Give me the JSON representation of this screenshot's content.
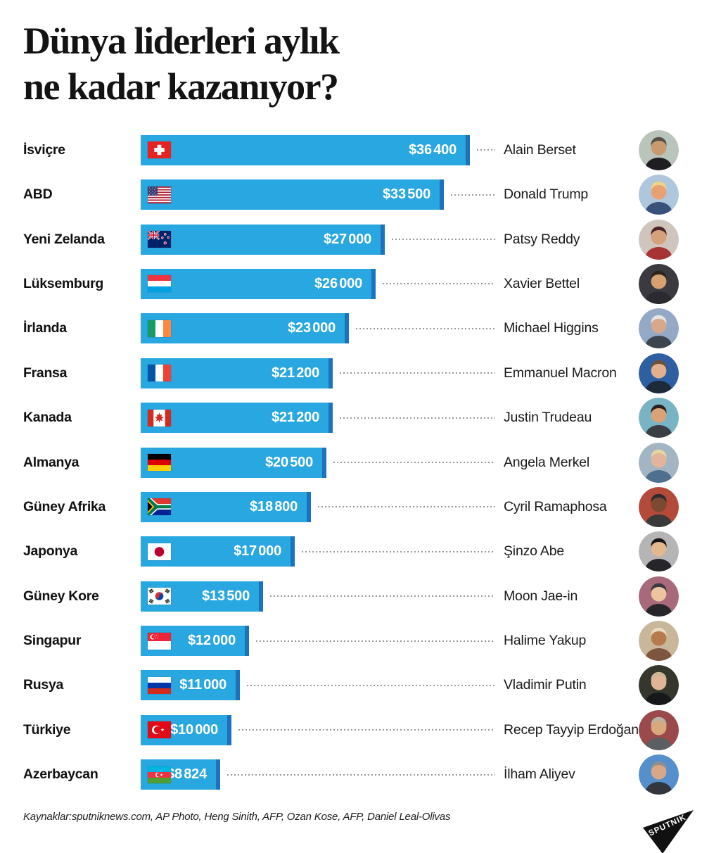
{
  "title": {
    "line1": "Dünya liderleri aylık",
    "line2": "ne kadar kazanıyor?"
  },
  "colors": {
    "bar": "#29a7e1",
    "bar_edge": "#1d72bd",
    "dots": "#999999",
    "background": "#ffffff",
    "text": "#131313"
  },
  "chart_data": {
    "type": "bar",
    "title": "Dünya liderleri aylık ne kadar kazanıyor?",
    "orientation": "horizontal",
    "unit": "USD per month",
    "categories": [
      "İsviçre",
      "ABD",
      "Yeni Zelanda",
      "Lüksemburg",
      "İrlanda",
      "Fransa",
      "Kanada",
      "Almanya",
      "Güney Afrika",
      "Japonya",
      "Güney Kore",
      "Singapur",
      "Rusya",
      "Türkiye",
      "Azerbaycan"
    ],
    "values": [
      36400,
      33500,
      27000,
      26000,
      23000,
      21200,
      21200,
      20500,
      18800,
      17000,
      13500,
      12000,
      11000,
      10000,
      8824
    ],
    "value_labels": [
      "$36 400",
      "$33 500",
      "$27 000",
      "$26 000",
      "$23 000",
      "$21 200",
      "$21 200",
      "$20 500",
      "$18 800",
      "$17 000",
      "$13 500",
      "$12 000",
      "$11 000",
      "$10 000",
      "$8 824"
    ],
    "leaders": [
      "Alain Berset",
      "Donald Trump",
      "Patsy Reddy",
      "Xavier Bettel",
      "Michael Higgins",
      "Emmanuel Macron",
      "Justin Trudeau",
      "Angela Merkel",
      "Cyril Ramaphosa",
      "Şinzo Abe",
      "Moon Jae-in",
      "Halime Yakup",
      "Vladimir Putin",
      "Recep Tayyip Erdoğan",
      "İlham Aliyev"
    ],
    "xlim": [
      0,
      36400
    ],
    "grid": false,
    "legend": false
  },
  "rows": [
    {
      "country": "İsviçre",
      "flag": "switzerland-flag-icon",
      "value": "$36 400",
      "amount": 36400,
      "leader": "Alain Berset",
      "photo": {
        "bg": "#b9c4bb",
        "skin": "#c79b6d",
        "hair": "#55504a",
        "suit": "#1e1e22"
      }
    },
    {
      "country": "ABD",
      "flag": "usa-flag-icon",
      "value": "$33 500",
      "amount": 33500,
      "leader": "Donald Trump",
      "photo": {
        "bg": "#aec7dd",
        "skin": "#e8a173",
        "hair": "#eed389",
        "suit": "#37517a"
      }
    },
    {
      "country": "Yeni Zelanda",
      "flag": "new-zealand-flag-icon",
      "value": "$27 000",
      "amount": 27000,
      "leader": "Patsy Reddy",
      "photo": {
        "bg": "#cfc5bc",
        "skin": "#d5a07c",
        "hair": "#4a2428",
        "suit": "#a63434"
      }
    },
    {
      "country": "Lüksemburg",
      "flag": "luxembourg-flag-icon",
      "value": "$26 000",
      "amount": 26000,
      "leader": "Xavier Bettel",
      "photo": {
        "bg": "#3a3a40",
        "skin": "#d7a273",
        "hair": "#2e241e",
        "suit": "#2a2a30"
      }
    },
    {
      "country": "İrlanda",
      "flag": "ireland-flag-icon",
      "value": "$23 000",
      "amount": 23000,
      "leader": "Michael Higgins",
      "photo": {
        "bg": "#93a9c6",
        "skin": "#d6a88c",
        "hair": "#e4e4e2",
        "suit": "#3c4450"
      }
    },
    {
      "country": "Fransa",
      "flag": "france-flag-icon",
      "value": "$21 200",
      "amount": 21200,
      "leader": "Emmanuel Macron",
      "photo": {
        "bg": "#2f5fa3",
        "skin": "#e3b08d",
        "hair": "#6b5238",
        "suit": "#1c2a3a"
      }
    },
    {
      "country": "Kanada",
      "flag": "canada-flag-icon",
      "value": "$21 200",
      "amount": 21200,
      "leader": "Justin Trudeau",
      "photo": {
        "bg": "#79b4c4",
        "skin": "#d9a377",
        "hair": "#2a211a",
        "suit": "#3a3f46"
      }
    },
    {
      "country": "Almanya",
      "flag": "germany-flag-icon",
      "value": "$20 500",
      "amount": 20500,
      "leader": "Angela Merkel",
      "photo": {
        "bg": "#a3b4c2",
        "skin": "#e2b49b",
        "hair": "#e6d6a2",
        "suit": "#4e6f8e"
      }
    },
    {
      "country": "Güney Afrika",
      "flag": "south-africa-flag-icon",
      "value": "$18 800",
      "amount": 18800,
      "leader": "Cyril Ramaphosa",
      "photo": {
        "bg": "#b34a3a",
        "skin": "#7c4a30",
        "hair": "#2c2c2c",
        "suit": "#3a3a3a"
      }
    },
    {
      "country": "Japonya",
      "flag": "japan-flag-icon",
      "value": "$17 000",
      "amount": 17000,
      "leader": "Şinzo Abe",
      "photo": {
        "bg": "#b5b5b5",
        "skin": "#e3b78f",
        "hair": "#161616",
        "suit": "#26262a"
      }
    },
    {
      "country": "Güney Kore",
      "flag": "south-korea-flag-icon",
      "value": "$13 500",
      "amount": 13500,
      "leader": "Moon Jae-in",
      "photo": {
        "bg": "#a86a7a",
        "skin": "#ecc49e",
        "hair": "#3a3a42",
        "suit": "#26262a"
      }
    },
    {
      "country": "Singapur",
      "flag": "singapore-flag-icon",
      "value": "$12 000",
      "amount": 12000,
      "leader": "Halime Yakup",
      "photo": {
        "bg": "#c9b79b",
        "skin": "#b57b4e",
        "hair": "#ead9bf",
        "suit": "#7d5640"
      }
    },
    {
      "country": "Rusya",
      "flag": "russia-flag-icon",
      "value": "$11 000",
      "amount": 11000,
      "leader": "Vladimir Putin",
      "photo": {
        "bg": "#35372c",
        "skin": "#e0b496",
        "hair": "#cbb694",
        "suit": "#17181c"
      }
    },
    {
      "country": "Türkiye",
      "flag": "turkey-flag-icon",
      "value": "$10 000",
      "amount": 10000,
      "leader": "Recep Tayyip Erdoğan",
      "photo": {
        "bg": "#9a4a4a",
        "skin": "#d9a87e",
        "hair": "#b9b2a8",
        "suit": "#5b5e63"
      }
    },
    {
      "country": "Azerbaycan",
      "flag": "azerbaijan-flag-icon",
      "value": "$8 824",
      "amount": 8824,
      "leader": "İlham Aliyev",
      "photo": {
        "bg": "#5590cc",
        "skin": "#d8a787",
        "hair": "#8f8f8f",
        "suit": "#34363e"
      }
    }
  ],
  "footer": {
    "sources": "Kaynaklar:sputniknews.com, AP Photo, Heng Sinith, AFP, Ozan Kose, AFP, Daniel Leal-Olivas",
    "logo_text": "SPUTNIK"
  }
}
